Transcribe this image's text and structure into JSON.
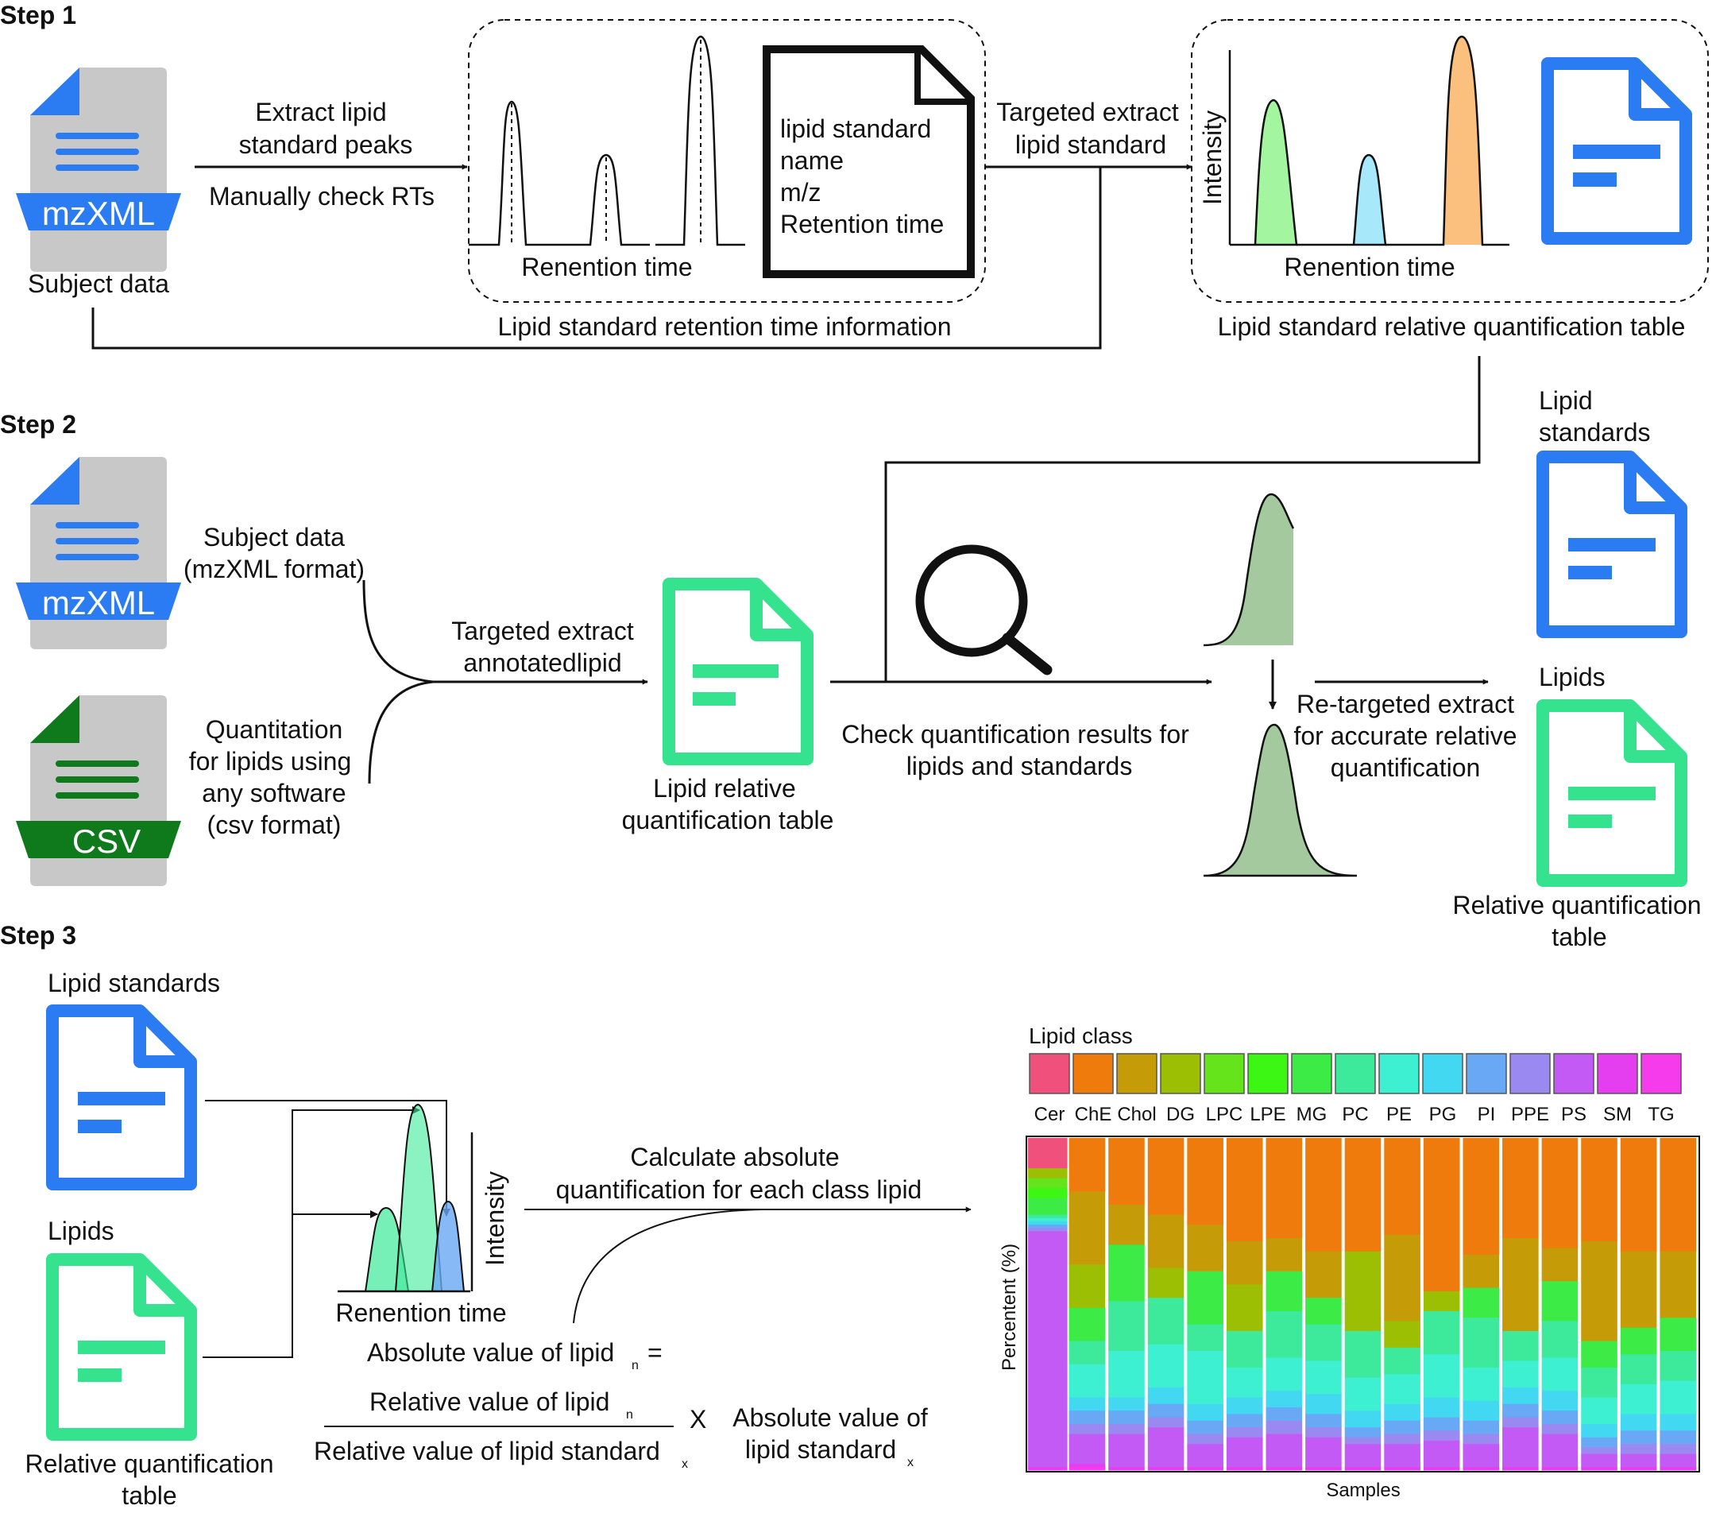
{
  "steps": {
    "s1": "Step 1",
    "s2": "Step 2",
    "s3": "Step 3"
  },
  "step1": {
    "file_badge": "mzXML",
    "subject_label": "Subject data",
    "arrow1_line1": "Extract lipid",
    "arrow1_line2": "standard peaks",
    "arrow1_below": "Manually check RTs",
    "peaks_axis": "Renention time",
    "card_line1": "lipid standard",
    "card_line2": "name",
    "card_line3": "m/z",
    "card_line4": "Retention time",
    "arrow2_line1": "Targeted extract",
    "arrow2_line2": "lipid standard",
    "rt_info": "Lipid standard retention time information",
    "intensity": "Intensity",
    "peaks2_axis": "Renention time",
    "table_label": "Lipid standard relative quantification table"
  },
  "step2": {
    "file_badge": "mzXML",
    "csv_badge": "CSV",
    "subject_line1": "Subject data",
    "subject_line2": "(mzXML format)",
    "quant_line1": "Quantitation",
    "quant_line2": "for lipids using",
    "quant_line3": "any software",
    "quant_line4": "(csv format)",
    "targeted_line1": "Targeted extract",
    "targeted_line2": "annotatedlipid",
    "rel_line1": "Lipid relative",
    "rel_line2": "quantification table",
    "check_line1": "Check quantification results for",
    "check_line2": "lipids and standards",
    "retarget_line1": "Re-targeted extract",
    "retarget_line2": "for accurate relative",
    "retarget_line3": "quantification",
    "std_line1": "Lipid",
    "std_line2": "standards",
    "lipids": "Lipids",
    "relq_line1": "Relative quantification",
    "relq_line2": "table"
  },
  "step3": {
    "lipid_standards": "Lipid standards",
    "lipids": "Lipids",
    "relq_line1": "Relative quantification",
    "relq_line2": "table",
    "intensity": "Intensity",
    "rt": "Renention time",
    "calc_line1": "Calculate absolute",
    "calc_line2": "quantification for each class lipid",
    "abs_label": "Absolute value of lipid",
    "sub_n": "n",
    "equals": "=",
    "rel_label": "Relative value of lipid",
    "rel_std_label": "Relative value of lipid standard",
    "sub_x": "x",
    "times": "X",
    "abs_std_line1": "Absolute value of",
    "abs_std_line2": "lipid standard"
  },
  "chart_data": {
    "type": "bar",
    "stacked": true,
    "legend_title": "Lipid class",
    "legend_placement": "top",
    "ylabel": "Percentent (%)",
    "xlabel": "Samples",
    "ylim": [
      0,
      100
    ],
    "classes": [
      "Cer",
      "ChE",
      "Chol",
      "DG",
      "LPC",
      "LPE",
      "MG",
      "PC",
      "PE",
      "PG",
      "PI",
      "PPE",
      "PS",
      "SM",
      "TG"
    ],
    "colors": [
      "#f0507c",
      "#ee7b0c",
      "#c59c08",
      "#9cbf04",
      "#66e41b",
      "#3cf614",
      "#3ceb45",
      "#3de99a",
      "#3ef0d2",
      "#43d8f2",
      "#68a8f4",
      "#9b89f2",
      "#c45af5",
      "#e43ef0",
      "#f53bec"
    ],
    "stack_order_bottom_to_top": [
      "TG",
      "SM",
      "PS",
      "PPE",
      "PI",
      "PG",
      "PE",
      "PC",
      "MG",
      "LPE",
      "LPC",
      "DG",
      "Chol",
      "ChE",
      "Cer"
    ],
    "samples": [
      {
        "Cer": 9,
        "ChE": 0,
        "Chol": 0,
        "DG": 3,
        "LPC": 3,
        "LPE": 3,
        "MG": 5,
        "PC": 1,
        "PE": 1,
        "PG": 1,
        "PI": 1,
        "PPE": 1,
        "PS": 71,
        "SM": 1,
        "TG": 0
      },
      {
        "Cer": 0,
        "ChE": 16,
        "Chol": 22,
        "DG": 13,
        "LPC": 0,
        "LPE": 0,
        "MG": 10,
        "PC": 7,
        "PE": 10,
        "PG": 4,
        "PI": 4,
        "PPE": 3,
        "PS": 9,
        "SM": 1,
        "TG": 1
      },
      {
        "Cer": 0,
        "ChE": 20,
        "Chol": 12,
        "DG": 0,
        "LPC": 0,
        "LPE": 0,
        "MG": 17,
        "PC": 15,
        "PE": 14,
        "PG": 4,
        "PI": 4,
        "PPE": 3,
        "PS": 10,
        "SM": 1,
        "TG": 0
      },
      {
        "Cer": 0,
        "ChE": 23,
        "Chol": 16,
        "DG": 9,
        "LPC": 0,
        "LPE": 0,
        "MG": 0,
        "PC": 14,
        "PE": 13,
        "PG": 5,
        "PI": 4,
        "PPE": 3,
        "PS": 12,
        "SM": 1,
        "TG": 0
      },
      {
        "Cer": 0,
        "ChE": 26,
        "Chol": 14,
        "DG": 0,
        "LPC": 0,
        "LPE": 0,
        "MG": 16,
        "PC": 8,
        "PE": 16,
        "PG": 5,
        "PI": 4,
        "PPE": 3,
        "PS": 7,
        "SM": 1,
        "TG": 0
      },
      {
        "Cer": 0,
        "ChE": 31,
        "Chol": 13,
        "DG": 14,
        "LPC": 0,
        "LPE": 0,
        "MG": 0,
        "PC": 11,
        "PE": 9,
        "PG": 5,
        "PI": 4,
        "PPE": 3,
        "PS": 9,
        "SM": 1,
        "TG": 0
      },
      {
        "Cer": 0,
        "ChE": 30,
        "Chol": 10,
        "DG": 0,
        "LPC": 0,
        "LPE": 0,
        "MG": 12,
        "PC": 14,
        "PE": 10,
        "PG": 5,
        "PI": 4,
        "PPE": 4,
        "PS": 10,
        "SM": 1,
        "TG": 0
      },
      {
        "Cer": 0,
        "ChE": 34,
        "Chol": 14,
        "DG": 0,
        "LPC": 0,
        "LPE": 0,
        "MG": 8,
        "PC": 11,
        "PE": 10,
        "PG": 6,
        "PI": 4,
        "PPE": 3,
        "PS": 9,
        "SM": 1,
        "TG": 0
      },
      {
        "Cer": 0,
        "ChE": 34,
        "Chol": 0,
        "DG": 24,
        "LPC": 0,
        "LPE": 0,
        "MG": 0,
        "PC": 14,
        "PE": 10,
        "PG": 5,
        "PI": 3,
        "PPE": 2,
        "PS": 7,
        "SM": 1,
        "TG": 0
      },
      {
        "Cer": 0,
        "ChE": 29,
        "Chol": 26,
        "DG": 8,
        "LPC": 0,
        "LPE": 0,
        "MG": 0,
        "PC": 8,
        "PE": 9,
        "PG": 5,
        "PI": 4,
        "PPE": 3,
        "PS": 7,
        "SM": 1,
        "TG": 0
      },
      {
        "Cer": 0,
        "ChE": 46,
        "Chol": 0,
        "DG": 6,
        "LPC": 0,
        "LPE": 0,
        "MG": 0,
        "PC": 13,
        "PE": 13,
        "PG": 6,
        "PI": 4,
        "PPE": 3,
        "PS": 8,
        "SM": 1,
        "TG": 0
      },
      {
        "Cer": 0,
        "ChE": 35,
        "Chol": 10,
        "DG": 0,
        "LPC": 0,
        "LPE": 0,
        "MG": 9,
        "PC": 15,
        "PE": 10,
        "PG": 6,
        "PI": 4,
        "PPE": 3,
        "PS": 7,
        "SM": 1,
        "TG": 0
      },
      {
        "Cer": 0,
        "ChE": 30,
        "Chol": 28,
        "DG": 0,
        "LPC": 0,
        "LPE": 0,
        "MG": 0,
        "PC": 9,
        "PE": 8,
        "PG": 5,
        "PI": 4,
        "PPE": 3,
        "PS": 12,
        "SM": 1,
        "TG": 0
      },
      {
        "Cer": 0,
        "ChE": 33,
        "Chol": 10,
        "DG": 0,
        "LPC": 0,
        "LPE": 0,
        "MG": 12,
        "PC": 11,
        "PE": 10,
        "PG": 6,
        "PI": 4,
        "PPE": 3,
        "PS": 10,
        "SM": 1,
        "TG": 0
      },
      {
        "Cer": 0,
        "ChE": 31,
        "Chol": 30,
        "DG": 0,
        "LPC": 0,
        "LPE": 0,
        "MG": 8,
        "PC": 9,
        "PE": 8,
        "PG": 4,
        "PI": 3,
        "PPE": 2,
        "PS": 4,
        "SM": 1,
        "TG": 0
      },
      {
        "Cer": 0,
        "ChE": 34,
        "Chol": 23,
        "DG": 0,
        "LPC": 0,
        "LPE": 0,
        "MG": 8,
        "PC": 9,
        "PE": 9,
        "PG": 5,
        "PI": 4,
        "PPE": 3,
        "PS": 4,
        "SM": 1,
        "TG": 0
      },
      {
        "Cer": 0,
        "ChE": 34,
        "Chol": 20,
        "DG": 0,
        "LPC": 0,
        "LPE": 0,
        "MG": 10,
        "PC": 9,
        "PE": 10,
        "PG": 5,
        "PI": 4,
        "PPE": 3,
        "PS": 4,
        "SM": 1,
        "TG": 0
      }
    ]
  },
  "colors": {
    "blue": "#2b7bf2",
    "green": "#35e38f",
    "doc_gray": "#c8c8c8",
    "csv_green": "#0f7a1b",
    "peak_green": "#a3f5a0",
    "peak_cyan": "#a8e8fb",
    "peak_orange": "#fbbf7e",
    "sage": "#a5c99f"
  }
}
